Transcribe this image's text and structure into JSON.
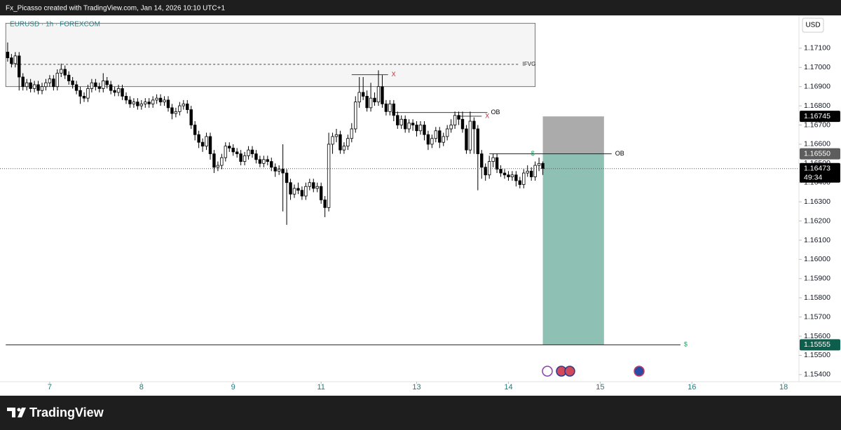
{
  "header": {
    "text": "Fx_Picasso created with TradingView.com, Jan 14, 2026 10:10 UTC+1"
  },
  "chart_data": {
    "type": "candlestick",
    "symbol": "EURUSD · 1h · FOREXCOM",
    "currency": "USD",
    "open": [
      1.1708,
      1.1705,
      1.1702,
      1.1706,
      1.1695,
      1.169,
      1.1692,
      1.1689,
      1.1691,
      1.1688,
      1.169,
      1.1692,
      1.1694,
      1.169,
      1.1697,
      1.1699,
      1.1696,
      1.1693,
      1.1691,
      1.1688,
      1.1685,
      1.1684,
      1.1689,
      1.1692,
      1.169,
      1.1689,
      1.1693,
      1.1691,
      1.1688,
      1.1687,
      1.1689,
      1.1685,
      1.1683,
      1.1681,
      1.1682,
      1.168,
      1.1681,
      1.1682,
      1.1681,
      1.1683,
      1.1684,
      1.1682,
      1.1683,
      1.1679,
      1.1676,
      1.1677,
      1.168,
      1.1681,
      1.1678,
      1.167,
      1.1665,
      1.1661,
      1.1659,
      1.1664,
      1.1655,
      1.1648,
      1.1649,
      1.1653,
      1.1659,
      1.1658,
      1.1656,
      1.1655,
      1.1651,
      1.1654,
      1.1657,
      1.1655,
      1.1652,
      1.165,
      1.1652,
      1.1651,
      1.1648,
      1.1646,
      1.1647,
      1.1645,
      1.164,
      1.1634,
      1.1637,
      1.1636,
      1.1633,
      1.1638,
      1.164,
      1.1637,
      1.1638,
      1.1631,
      1.1627,
      1.166,
      1.1664,
      1.1665,
      1.1657,
      1.1659,
      1.1663,
      1.1668,
      1.1682,
      1.1687,
      1.1685,
      1.1679,
      1.1684,
      1.1682,
      1.169,
      1.1681,
      1.1677,
      1.1681,
      1.1675,
      1.167,
      1.1673,
      1.1668,
      1.1671,
      1.167,
      1.1667,
      1.167,
      1.1665,
      1.166,
      1.1663,
      1.1667,
      1.1661,
      1.1664,
      1.1668,
      1.167,
      1.1675,
      1.1673,
      1.1668,
      1.1657,
      1.1672,
      1.1668,
      1.1655,
      1.1648,
      1.1644,
      1.1651,
      1.1653,
      1.1647,
      1.1645,
      1.1644,
      1.1643,
      1.1644,
      1.1641,
      1.1639,
      1.1645,
      1.1646,
      1.1643,
      1.1649,
      1.165
    ],
    "high": [
      1.1713,
      1.1707,
      1.1708,
      1.1708,
      1.1697,
      1.1694,
      1.1694,
      1.1693,
      1.1693,
      1.1692,
      1.1694,
      1.1696,
      1.1696,
      1.1699,
      1.1702,
      1.1701,
      1.1698,
      1.1695,
      1.1693,
      1.169,
      1.1687,
      1.1691,
      1.1694,
      1.1694,
      1.1692,
      1.1697,
      1.1695,
      1.1693,
      1.169,
      1.1691,
      1.1691,
      1.1687,
      1.1685,
      1.1684,
      1.1684,
      1.1683,
      1.1684,
      1.1684,
      1.1685,
      1.1686,
      1.1686,
      1.1685,
      1.1685,
      1.1681,
      1.1679,
      1.1682,
      1.1683,
      1.1683,
      1.168,
      1.1672,
      1.1667,
      1.1663,
      1.1666,
      1.1666,
      1.1657,
      1.1651,
      1.1655,
      1.1661,
      1.1661,
      1.166,
      1.1658,
      1.1657,
      1.1656,
      1.1659,
      1.1659,
      1.1657,
      1.1654,
      1.1654,
      1.1654,
      1.1653,
      1.165,
      1.1649,
      1.166,
      1.1647,
      1.1642,
      1.1639,
      1.164,
      1.1638,
      1.164,
      1.1642,
      1.1642,
      1.164,
      1.164,
      1.1633,
      1.1666,
      1.1666,
      1.1668,
      1.1667,
      1.1661,
      1.1665,
      1.1671,
      1.1685,
      1.1695,
      1.1695,
      1.1688,
      1.1692,
      1.1687,
      1.16985,
      1.1696,
      1.1683,
      1.1683,
      1.1683,
      1.1677,
      1.1675,
      1.1675,
      1.1673,
      1.1673,
      1.1672,
      1.1672,
      1.1672,
      1.1667,
      1.1665,
      1.1669,
      1.1669,
      1.1666,
      1.167,
      1.1673,
      1.1677,
      1.1677,
      1.1677,
      1.167,
      1.1677,
      1.1674,
      1.167,
      1.1657,
      1.165,
      1.1654,
      1.1655,
      1.1655,
      1.1649,
      1.1647,
      1.1646,
      1.1646,
      1.1646,
      1.1643,
      1.1647,
      1.1649,
      1.1648,
      1.1651,
      1.1653,
      1.1651
    ],
    "low": [
      1.1703,
      1.17,
      1.17,
      1.1688,
      1.1688,
      1.1688,
      1.1687,
      1.1687,
      1.1686,
      1.1686,
      1.1688,
      1.169,
      1.1688,
      1.1688,
      1.1695,
      1.1694,
      1.1691,
      1.1689,
      1.1686,
      1.1681,
      1.1682,
      1.1682,
      1.1687,
      1.1688,
      1.1687,
      1.1687,
      1.1689,
      1.1686,
      1.1685,
      1.1685,
      1.1683,
      1.1681,
      1.1679,
      1.1679,
      1.1678,
      1.1678,
      1.1679,
      1.1679,
      1.1679,
      1.1681,
      1.168,
      1.168,
      1.1677,
      1.1673,
      1.1674,
      1.1675,
      1.1678,
      1.1676,
      1.1668,
      1.1662,
      1.1658,
      1.1656,
      1.1657,
      1.1652,
      1.1645,
      1.1646,
      1.1647,
      1.1651,
      1.1656,
      1.1654,
      1.1653,
      1.1649,
      1.1649,
      1.1652,
      1.1653,
      1.165,
      1.1648,
      1.1648,
      1.1649,
      1.1646,
      1.1643,
      1.1644,
      1.1625,
      1.1618,
      1.1631,
      1.1632,
      1.1634,
      1.1631,
      1.1631,
      1.1636,
      1.1635,
      1.1635,
      1.1629,
      1.1622,
      1.1625,
      1.1655,
      1.1661,
      1.1655,
      1.1655,
      1.1657,
      1.1661,
      1.1666,
      1.1679,
      1.1683,
      1.1677,
      1.1677,
      1.168,
      1.168,
      1.1679,
      1.1675,
      1.1675,
      1.1672,
      1.1668,
      1.1668,
      1.1666,
      1.1666,
      1.1667,
      1.1664,
      1.1665,
      1.1662,
      1.1657,
      1.1658,
      1.1661,
      1.1658,
      1.1659,
      1.1662,
      1.1666,
      1.1668,
      1.167,
      1.1666,
      1.1655,
      1.1655,
      1.1655,
      1.1636,
      1.1642,
      1.1641,
      1.1642,
      1.1648,
      1.1645,
      1.1643,
      1.1642,
      1.1641,
      1.1641,
      1.1638,
      1.1637,
      1.1637,
      1.1643,
      1.1641,
      1.1641,
      1.1646,
      1.1644
    ],
    "close": [
      1.1705,
      1.1702,
      1.1706,
      1.1695,
      1.169,
      1.1692,
      1.1689,
      1.1691,
      1.1688,
      1.169,
      1.1692,
      1.1694,
      1.169,
      1.1697,
      1.1699,
      1.1696,
      1.1693,
      1.1691,
      1.1688,
      1.1685,
      1.1684,
      1.1689,
      1.1692,
      1.169,
      1.1689,
      1.1693,
      1.1691,
      1.1688,
      1.1687,
      1.1689,
      1.1685,
      1.1683,
      1.1681,
      1.1682,
      1.168,
      1.1681,
      1.1682,
      1.1681,
      1.1683,
      1.1684,
      1.1682,
      1.1683,
      1.1679,
      1.1676,
      1.1677,
      1.168,
      1.1681,
      1.1678,
      1.167,
      1.1665,
      1.1661,
      1.1659,
      1.1664,
      1.1655,
      1.1648,
      1.1649,
      1.1653,
      1.1659,
      1.1658,
      1.1656,
      1.1655,
      1.1651,
      1.1654,
      1.1657,
      1.1655,
      1.1652,
      1.165,
      1.1652,
      1.1651,
      1.1648,
      1.1646,
      1.1647,
      1.1645,
      1.164,
      1.1634,
      1.1637,
      1.1636,
      1.1633,
      1.1638,
      1.164,
      1.1637,
      1.1638,
      1.1631,
      1.1627,
      1.166,
      1.1664,
      1.1665,
      1.1657,
      1.1659,
      1.1663,
      1.1668,
      1.1682,
      1.1687,
      1.1685,
      1.1679,
      1.1684,
      1.1682,
      1.169,
      1.1681,
      1.1677,
      1.1681,
      1.1675,
      1.167,
      1.1673,
      1.1668,
      1.1671,
      1.167,
      1.1667,
      1.167,
      1.1665,
      1.166,
      1.1663,
      1.1667,
      1.1661,
      1.1664,
      1.1668,
      1.167,
      1.1675,
      1.1673,
      1.1668,
      1.1657,
      1.1672,
      1.1668,
      1.1655,
      1.1648,
      1.1644,
      1.1651,
      1.1653,
      1.1647,
      1.1645,
      1.1644,
      1.1643,
      1.1644,
      1.1641,
      1.1639,
      1.1645,
      1.1646,
      1.1643,
      1.1649,
      1.165,
      1.16473
    ],
    "up_color": "#ffffff",
    "down_color": "#000000",
    "xlim": [
      -2,
      207
    ],
    "xticks": [
      {
        "value": 11,
        "label": "7"
      },
      {
        "value": 35,
        "label": "8"
      },
      {
        "value": 59,
        "label": "9"
      },
      {
        "value": 82,
        "label": "11"
      },
      {
        "value": 107,
        "label": "13"
      },
      {
        "value": 131,
        "label": "14"
      },
      {
        "value": 155,
        "label": "15"
      },
      {
        "value": 179,
        "label": "16"
      },
      {
        "value": 203,
        "label": "18"
      }
    ],
    "ylim": [
      1.15363,
      1.17271
    ],
    "yticks": [
      {
        "value": 1.154,
        "label": "1.15400"
      },
      {
        "value": 1.155,
        "label": "1.15500"
      },
      {
        "value": 1.156,
        "label": "1.15600"
      },
      {
        "value": 1.157,
        "label": "1.15700"
      },
      {
        "value": 1.158,
        "label": "1.15800"
      },
      {
        "value": 1.159,
        "label": "1.15900"
      },
      {
        "value": 1.16,
        "label": "1.16000"
      },
      {
        "value": 1.161,
        "label": "1.16100"
      },
      {
        "value": 1.162,
        "label": "1.16200"
      },
      {
        "value": 1.163,
        "label": "1.16300"
      },
      {
        "value": 1.164,
        "label": "1.16400"
      },
      {
        "value": 1.165,
        "label": "1.16500"
      },
      {
        "value": 1.166,
        "label": "1.16600"
      },
      {
        "value": 1.167,
        "label": "1.16700"
      },
      {
        "value": 1.168,
        "label": "1.16800"
      },
      {
        "value": 1.169,
        "label": "1.16900"
      },
      {
        "value": 1.17,
        "label": "1.17000"
      },
      {
        "value": 1.171,
        "label": "1.17100"
      }
    ],
    "grid": false,
    "last_price": 1.16473,
    "countdown": "49:34",
    "zone": {
      "label": "IFVG",
      "top": 1.1723,
      "bottom": 1.169,
      "midline": 1.17016,
      "x": [
        -0.5,
        138
      ]
    },
    "levels": [
      {
        "value": 1.16962,
        "x": [
          90,
          99.5
        ],
        "label": "X",
        "color": "#b2303a"
      },
      {
        "value": 1.16765,
        "x": [
          100.5,
          125.5
        ],
        "label": "OB",
        "color": "#000000"
      },
      {
        "value": 1.16746,
        "x": [
          118,
          124
        ],
        "label": "X",
        "color": "#b2303a"
      },
      {
        "value": 1.1655,
        "x": [
          126,
          158
        ],
        "label": "OB",
        "color": "#000000"
      },
      {
        "value": 1.1655,
        "x": [
          136,
          136
        ],
        "label": "$",
        "color": "#2a9d6a"
      },
      {
        "value": 1.15555,
        "x": [
          -0.5,
          176
        ],
        "label": "$",
        "color": "#2a9d6a"
      }
    ],
    "position": {
      "stop": 1.16745,
      "entry": {
        "value": 1.1655,
        "label": "1.16550"
      },
      "target": 1.15555,
      "x": [
        140,
        156
      ],
      "risk_color": "#ababab",
      "reward_color": "#8fc0b4"
    }
  },
  "footer": {
    "brand": "TradingView"
  }
}
